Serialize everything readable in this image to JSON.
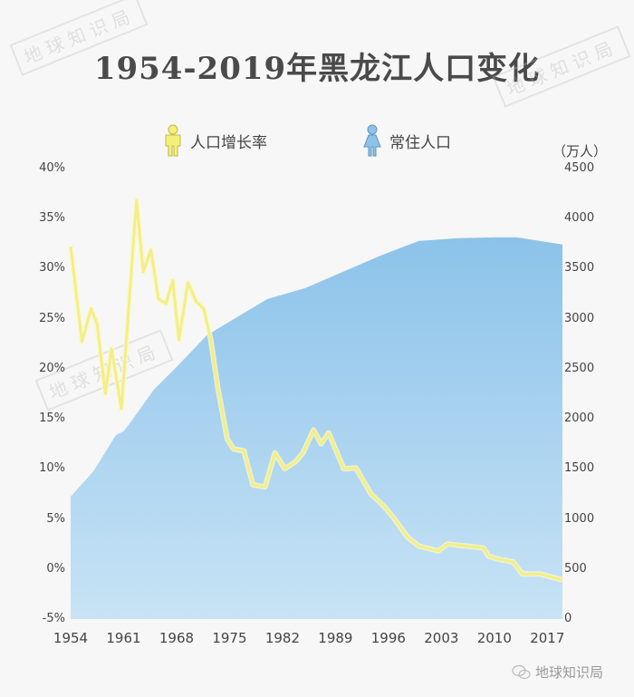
{
  "title": "1954-2019年黑龙江人口变化",
  "legend": [
    {
      "label": "人口增长率",
      "icon": "male-person-icon",
      "color": "#f2ee8a"
    },
    {
      "label": "常住人口",
      "icon": "female-person-icon",
      "color": "#8dc3ea"
    }
  ],
  "right_axis_unit": "（万人）",
  "left_ticks": [
    "40%",
    "35%",
    "30%",
    "25%",
    "20%",
    "15%",
    "10%",
    "5%",
    "0%",
    "-5%"
  ],
  "right_ticks": [
    "4500",
    "4000",
    "3500",
    "3000",
    "2500",
    "2000",
    "1500",
    "1000",
    "500",
    "0"
  ],
  "x_ticks": [
    "1954",
    "1961",
    "1968",
    "1975",
    "1982",
    "1989",
    "1996",
    "2003",
    "2010",
    "2017"
  ],
  "watermark": "地球知识局",
  "footer": "地球知识局",
  "colors": {
    "line": "#f2ee8a",
    "area_top": "#8cc3ea",
    "area_bottom": "#c8e3f5",
    "background": "#f7f7f7"
  },
  "chart_data": {
    "type": "line+area",
    "title": "1954-2019年黑龙江人口变化",
    "xlabel": "",
    "x_range": [
      1954,
      2019
    ],
    "x_ticks": [
      1954,
      1961,
      1968,
      1975,
      1982,
      1989,
      1996,
      2003,
      2010,
      2017
    ],
    "series": [
      {
        "name": "人口增长率",
        "type": "line",
        "axis": "left",
        "unit": "‰-style % as labeled",
        "ylim": [
          -5,
          40
        ],
        "points": [
          [
            1954.0,
            32.2
          ],
          [
            1955.5,
            22.7
          ],
          [
            1956.7,
            26.0
          ],
          [
            1957.5,
            24.5
          ],
          [
            1958.6,
            17.5
          ],
          [
            1959.4,
            22.0
          ],
          [
            1960.7,
            16.0
          ],
          [
            1962.7,
            36.8
          ],
          [
            1963.6,
            29.7
          ],
          [
            1964.6,
            31.9
          ],
          [
            1965.6,
            27.0
          ],
          [
            1966.6,
            26.5
          ],
          [
            1967.5,
            28.8
          ],
          [
            1968.3,
            22.9
          ],
          [
            1969.5,
            28.6
          ],
          [
            1970.6,
            26.7
          ],
          [
            1971.6,
            26.0
          ],
          [
            1972.5,
            23.0
          ],
          [
            1973.5,
            17.9
          ],
          [
            1974.7,
            13.0
          ],
          [
            1975.5,
            12.0
          ],
          [
            1976.9,
            11.8
          ],
          [
            1978.1,
            8.4
          ],
          [
            1979.7,
            8.2
          ],
          [
            1981.0,
            11.6
          ],
          [
            1982.3,
            10.0
          ],
          [
            1983.7,
            10.7
          ],
          [
            1984.7,
            11.6
          ],
          [
            1986.1,
            13.9
          ],
          [
            1987.1,
            12.5
          ],
          [
            1988.1,
            13.6
          ],
          [
            1990.1,
            10.0
          ],
          [
            1991.7,
            10.1
          ],
          [
            1993.7,
            7.5
          ],
          [
            1995.5,
            6.2
          ],
          [
            1996.7,
            5.1
          ],
          [
            1998.5,
            3.2
          ],
          [
            2000.0,
            2.3
          ],
          [
            2002.6,
            1.8
          ],
          [
            2003.8,
            2.5
          ],
          [
            2005.0,
            2.4
          ],
          [
            2008.6,
            2.1
          ],
          [
            2009.2,
            1.3
          ],
          [
            2010.4,
            1.0
          ],
          [
            2012.5,
            0.7
          ],
          [
            2013.7,
            -0.5
          ],
          [
            2016.1,
            -0.5
          ],
          [
            2019.0,
            -1.1
          ]
        ]
      },
      {
        "name": "常住人口",
        "type": "area",
        "axis": "right",
        "unit": "万人",
        "ylim": [
          0,
          4500
        ],
        "points": [
          [
            1954,
            1223
          ],
          [
            1957,
            1476
          ],
          [
            1960,
            1839
          ],
          [
            1961,
            1875
          ],
          [
            1962,
            1975
          ],
          [
            1965,
            2292
          ],
          [
            1968,
            2518
          ],
          [
            1972,
            2835
          ],
          [
            1975,
            2971
          ],
          [
            1980,
            3197
          ],
          [
            1985,
            3306
          ],
          [
            1990,
            3469
          ],
          [
            1995,
            3632
          ],
          [
            2000,
            3777
          ],
          [
            2005,
            3804
          ],
          [
            2010,
            3813
          ],
          [
            2013,
            3813
          ],
          [
            2019,
            3741
          ]
        ]
      }
    ],
    "legend_position": "top",
    "grid": false
  }
}
